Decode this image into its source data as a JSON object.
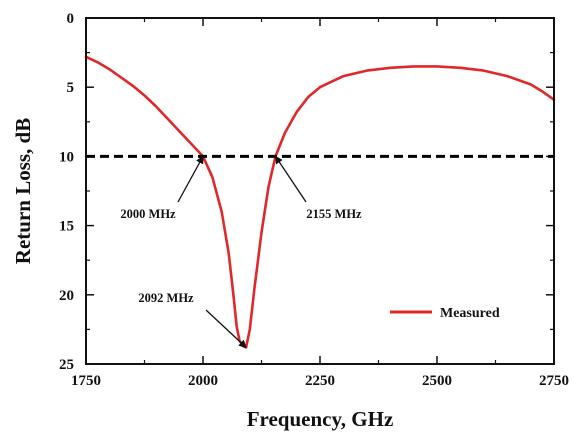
{
  "chart_data": {
    "type": "line",
    "xlabel": "Frequency, GHz",
    "ylabel": "Return Loss, dB",
    "xlim": [
      1750,
      2750
    ],
    "ylim": [
      0,
      25
    ],
    "y_inverted": true,
    "x_ticks": [
      1750,
      2000,
      2250,
      2500,
      2750
    ],
    "y_ticks": [
      0,
      5,
      10,
      15,
      20,
      25
    ],
    "grid": false,
    "legend_position": "lower-right",
    "series": [
      {
        "name": "Measured",
        "color": "#e0282a",
        "x": [
          1750,
          1775,
          1800,
          1825,
          1850,
          1875,
          1900,
          1925,
          1950,
          1975,
          2000,
          2020,
          2040,
          2055,
          2065,
          2072,
          2078,
          2085,
          2092,
          2100,
          2110,
          2125,
          2140,
          2155,
          2175,
          2200,
          2225,
          2250,
          2300,
          2350,
          2400,
          2450,
          2500,
          2550,
          2600,
          2650,
          2700,
          2725,
          2750
        ],
        "y": [
          2.8,
          3.2,
          3.7,
          4.3,
          4.9,
          5.6,
          6.4,
          7.3,
          8.2,
          9.1,
          10.0,
          11.5,
          14.0,
          17.0,
          20.0,
          22.3,
          23.3,
          23.7,
          23.8,
          22.5,
          19.5,
          15.5,
          12.2,
          10.0,
          8.3,
          6.8,
          5.7,
          5.0,
          4.2,
          3.8,
          3.6,
          3.5,
          3.5,
          3.6,
          3.8,
          4.2,
          4.8,
          5.3,
          5.9
        ]
      },
      {
        "name": "",
        "style": "dashed",
        "color": "#000000",
        "x": [
          1750,
          2750
        ],
        "y": [
          10,
          10
        ]
      }
    ],
    "annotations": [
      {
        "text": "2000 MHz",
        "x": 2000,
        "y": 10
      },
      {
        "text": "2155 MHz",
        "x": 2155,
        "y": 10
      },
      {
        "text": "2092 MHz",
        "x": 2092,
        "y": 23.8
      }
    ]
  }
}
